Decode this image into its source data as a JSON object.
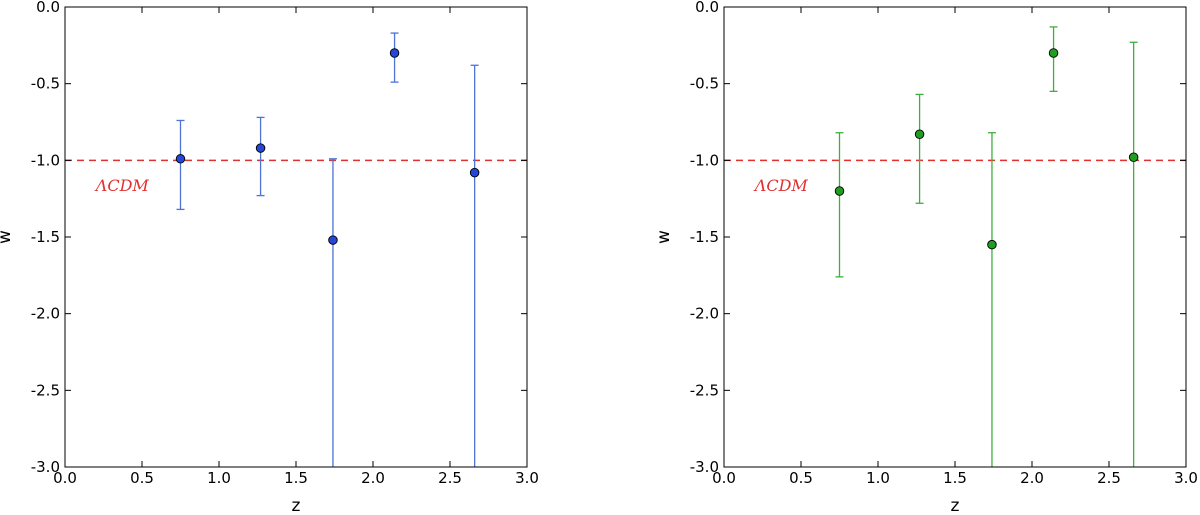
{
  "chart_data": [
    {
      "type": "scatter",
      "xlabel": "z",
      "ylabel": "w",
      "xlim": [
        0.0,
        3.0
      ],
      "ylim": [
        -3.0,
        0.0
      ],
      "x_ticks": [
        "0.0",
        "0.5",
        "1.0",
        "1.5",
        "2.0",
        "2.5",
        "3.0"
      ],
      "y_ticks": [
        "0.0",
        "-0.5",
        "-1.0",
        "-1.5",
        "-2.0",
        "-2.5",
        "-3.0"
      ],
      "color": "#2646d8",
      "errorbar_color": "#4f73d6",
      "series": [
        {
          "points": [
            {
              "x": 0.75,
              "y": -0.99,
              "y_low": -1.32,
              "y_high": -0.74
            },
            {
              "x": 1.27,
              "y": -0.92,
              "y_low": -1.23,
              "y_high": -0.72
            },
            {
              "x": 1.74,
              "y": -1.52,
              "y_low": -3.0,
              "y_high": -0.99
            },
            {
              "x": 2.14,
              "y": -0.3,
              "y_low": -0.49,
              "y_high": -0.17
            },
            {
              "x": 2.66,
              "y": -1.08,
              "y_low": -3.0,
              "y_high": -0.38
            }
          ]
        }
      ],
      "reference_line": {
        "y": -1.0,
        "style": "dashed",
        "color": "#e03030",
        "label": "ΛCDM",
        "label_x": 0.2,
        "label_y": -1.16
      }
    },
    {
      "type": "scatter",
      "xlabel": "z",
      "ylabel": "w",
      "xlim": [
        0.0,
        3.0
      ],
      "ylim": [
        -3.0,
        0.0
      ],
      "x_ticks": [
        "0.0",
        "0.5",
        "1.0",
        "1.5",
        "2.0",
        "2.5",
        "3.0"
      ],
      "y_ticks": [
        "0.0",
        "-0.5",
        "-1.0",
        "-1.5",
        "-2.0",
        "-2.5",
        "-3.0"
      ],
      "color": "#1f9e1f",
      "errorbar_color": "#3fb03f",
      "series": [
        {
          "points": [
            {
              "x": 0.75,
              "y": -1.2,
              "y_low": -1.76,
              "y_high": -0.82
            },
            {
              "x": 1.27,
              "y": -0.83,
              "y_low": -1.28,
              "y_high": -0.57
            },
            {
              "x": 1.74,
              "y": -1.55,
              "y_low": -3.0,
              "y_high": -0.82
            },
            {
              "x": 2.14,
              "y": -0.3,
              "y_low": -0.55,
              "y_high": -0.13
            },
            {
              "x": 2.66,
              "y": -0.98,
              "y_low": -3.0,
              "y_high": -0.23
            }
          ]
        }
      ],
      "reference_line": {
        "y": -1.0,
        "style": "dashed",
        "color": "#e03030",
        "label": "ΛCDM",
        "label_x": 0.2,
        "label_y": -1.16
      }
    }
  ]
}
